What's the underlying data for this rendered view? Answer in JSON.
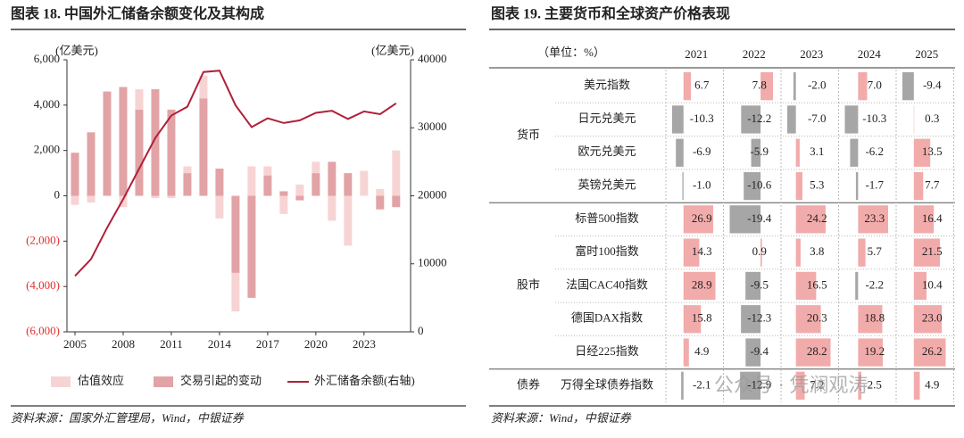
{
  "chart_data": {
    "type": "bar_line",
    "title": "图表 18. 中国外汇储备余额变化及其构成",
    "y_unit": "(亿美元)",
    "y2_unit": "(亿美元)",
    "x": [
      2005,
      2006,
      2007,
      2008,
      2009,
      2010,
      2011,
      2012,
      2013,
      2014,
      2015,
      2016,
      2017,
      2018,
      2019,
      2020,
      2021,
      2022,
      2023,
      2024,
      2025
    ],
    "series": [
      {
        "name": "估值效应",
        "color": "#f7d4d4",
        "values": [
          -400,
          -300,
          0,
          -500,
          900,
          -100,
          -100,
          300,
          1000,
          -1000,
          -1700,
          1300,
          400,
          -800,
          500,
          500,
          -1100,
          -2200,
          1100,
          300,
          2000
        ]
      },
      {
        "name": "交易引起的变动",
        "color": "#e2a3a6",
        "values": [
          1900,
          2800,
          4600,
          4800,
          3800,
          4700,
          3800,
          1000,
          4300,
          1200,
          -3400,
          -4500,
          900,
          200,
          -200,
          1000,
          1500,
          1000,
          0,
          -600,
          -500
        ]
      },
      {
        "name": "外汇储备余额(右轴)",
        "color": "#b0203a",
        "type": "line",
        "axis": "y2",
        "values": [
          8200,
          10700,
          15300,
          19500,
          24000,
          28500,
          31800,
          33100,
          38200,
          38400,
          33300,
          30100,
          31400,
          30700,
          31100,
          32200,
          32500,
          31300,
          32400,
          32000,
          33600
        ]
      }
    ],
    "xlim": [
      2004.5,
      2025.9
    ],
    "xticks": [
      2005,
      2008,
      2011,
      2014,
      2017,
      2020,
      2023
    ],
    "ylim": [
      -6000,
      6000
    ],
    "yticks": [
      {
        "value": -6000,
        "label": "(6,000)"
      },
      {
        "value": -4000,
        "label": "(4,000)"
      },
      {
        "value": -2000,
        "label": "(2,000)"
      },
      0,
      {
        "value": 2000,
        "label": "2,000"
      },
      {
        "value": 4000,
        "label": "4,000"
      },
      {
        "value": 6000,
        "label": "6,000"
      }
    ],
    "y2lim": [
      0,
      40000
    ],
    "y2ticks": [
      0,
      10000,
      20000,
      30000,
      40000
    ],
    "negative_tick_color": "#e0302f",
    "source": "资料来源：国家外汇管理局，Wind，中银证券"
  },
  "table": {
    "title": "图表 19. 主要货币和全球资产价格表现",
    "unit_label": "（单位：%）",
    "columns": [
      "2021",
      "2022",
      "2023",
      "2024",
      "2025"
    ],
    "positive_color": "#f2abab",
    "negative_color": "#a6a6a6",
    "groups": [
      {
        "label": "货币",
        "rows": [
          {
            "label": "美元指数",
            "values": [
              6.7,
              7.8,
              -2.0,
              7.0,
              -9.4
            ],
            "value_labels": [
              "6.7",
              "7.8",
              "-2.0",
              "7.0",
              "-9.4"
            ]
          },
          {
            "label": "日元兑美元",
            "values": [
              -10.3,
              -12.2,
              -7.0,
              -10.3,
              0.3
            ],
            "value_labels": [
              "-10.3",
              "-12.2",
              "-7.0",
              "-10.3",
              "0.3"
            ]
          },
          {
            "label": "欧元兑美元",
            "values": [
              -6.9,
              -5.9,
              3.1,
              -6.2,
              13.5
            ],
            "value_labels": [
              "-6.9",
              "-5.9",
              "3.1",
              "-6.2",
              "13.5"
            ]
          },
          {
            "label": "英镑兑美元",
            "values": [
              -1.0,
              -10.6,
              5.3,
              -1.7,
              7.7
            ],
            "value_labels": [
              "-1.0",
              "-10.6",
              "5.3",
              "-1.7",
              "7.7"
            ]
          }
        ]
      },
      {
        "label": "股市",
        "rows": [
          {
            "label": "标普500指数",
            "values": [
              26.9,
              -19.4,
              24.2,
              23.3,
              16.4
            ],
            "value_labels": [
              "26.9",
              "-19.4",
              "24.2",
              "23.3",
              "16.4"
            ]
          },
          {
            "label": "富时100指数",
            "values": [
              14.3,
              0.9,
              3.8,
              5.7,
              21.5
            ],
            "value_labels": [
              "14.3",
              "0.9",
              "3.8",
              "5.7",
              "21.5"
            ]
          },
          {
            "label": "法国CAC40指数",
            "values": [
              28.9,
              -9.5,
              16.5,
              -2.2,
              10.4
            ],
            "value_labels": [
              "28.9",
              "-9.5",
              "16.5",
              "-2.2",
              "10.4"
            ]
          },
          {
            "label": "德国DAX指数",
            "values": [
              15.8,
              -12.3,
              20.3,
              18.8,
              23.0
            ],
            "value_labels": [
              "15.8",
              "-12.3",
              "20.3",
              "18.8",
              "23.0"
            ]
          },
          {
            "label": "日经225指数",
            "values": [
              4.9,
              -9.4,
              28.2,
              19.2,
              26.2
            ],
            "value_labels": [
              "4.9",
              "-9.4",
              "28.2",
              "19.2",
              "26.2"
            ]
          }
        ]
      },
      {
        "label": "债券",
        "rows": [
          {
            "label": "万得全球债券指数",
            "values": [
              -2.1,
              -12.9,
              7.2,
              2.5,
              4.9
            ],
            "value_labels": [
              "-2.1",
              "-12.9",
              "7.2",
              "2.5",
              "4.9"
            ]
          }
        ]
      }
    ],
    "source": "资料来源：Wind，中银证券"
  },
  "watermark": "公众号 · 凭澜观涛"
}
